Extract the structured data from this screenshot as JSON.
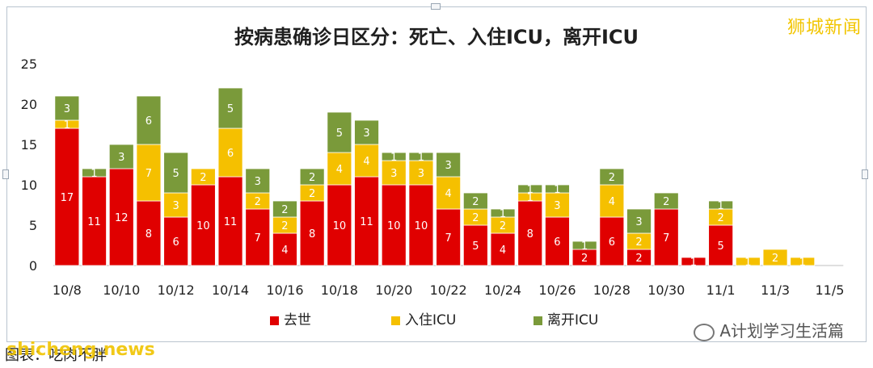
{
  "title": "按病患确诊日区分：死亡、入住ICU，离开ICU",
  "watermark": "狮城新闻",
  "site": "shicheng.news",
  "footer_source": "图表：吃肉不胖",
  "wechat": "A计划学习生活篇",
  "colors": {
    "death": "#e00000",
    "icu_in": "#f5c000",
    "icu_out": "#7a9a3a"
  },
  "chart_data": {
    "type": "bar",
    "stacked": true,
    "categories": [
      "10/8",
      "10/9",
      "10/10",
      "10/11",
      "10/12",
      "10/13",
      "10/14",
      "10/15",
      "10/16",
      "10/17",
      "10/18",
      "10/19",
      "10/20",
      "10/21",
      "10/22",
      "10/23",
      "10/24",
      "10/25",
      "10/26",
      "10/27",
      "10/28",
      "10/29",
      "10/30",
      "10/31",
      "11/1",
      "11/2",
      "11/3",
      "11/4",
      "11/5"
    ],
    "tick_labels": [
      "10/8",
      "10/10",
      "10/12",
      "10/14",
      "10/16",
      "10/18",
      "10/20",
      "10/22",
      "10/24",
      "10/26",
      "10/28",
      "10/30",
      "11/1",
      "11/3",
      "11/5"
    ],
    "ylim": [
      0,
      25
    ],
    "yticks": [
      0,
      5,
      10,
      15,
      20,
      25
    ],
    "grid": false,
    "legend_position": "bottom",
    "series": [
      {
        "name": "去世",
        "values": [
          17,
          11,
          12,
          8,
          6,
          10,
          11,
          7,
          4,
          8,
          10,
          11,
          10,
          10,
          7,
          5,
          4,
          8,
          6,
          2,
          6,
          2,
          7,
          1,
          5,
          0,
          0,
          0,
          0
        ]
      },
      {
        "name": "入住ICU",
        "values": [
          1,
          0,
          0,
          7,
          3,
          2,
          6,
          2,
          2,
          2,
          4,
          4,
          3,
          3,
          4,
          2,
          2,
          1,
          3,
          0,
          4,
          2,
          0,
          0,
          2,
          1,
          2,
          1,
          0
        ]
      },
      {
        "name": "离开ICU",
        "values": [
          3,
          1,
          3,
          6,
          5,
          0,
          5,
          3,
          2,
          2,
          5,
          3,
          1,
          1,
          3,
          2,
          1,
          1,
          1,
          1,
          2,
          3,
          2,
          0,
          1,
          0,
          0,
          0,
          0
        ]
      }
    ]
  }
}
